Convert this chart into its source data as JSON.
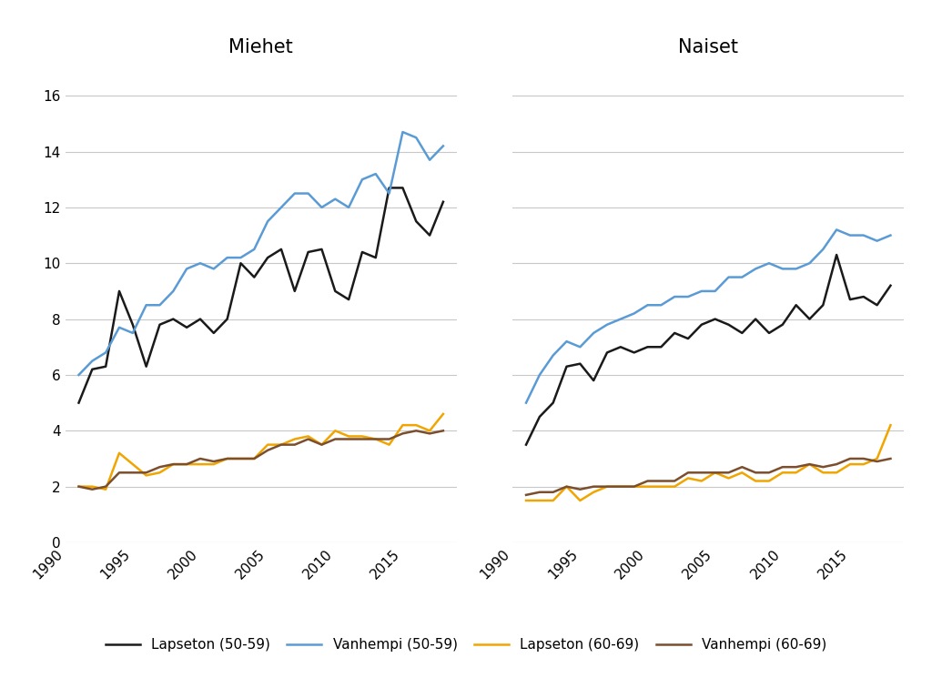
{
  "years": [
    1991,
    1992,
    1993,
    1994,
    1995,
    1996,
    1997,
    1998,
    1999,
    2000,
    2001,
    2002,
    2003,
    2004,
    2005,
    2006,
    2007,
    2008,
    2009,
    2010,
    2011,
    2012,
    2013,
    2014,
    2015,
    2016,
    2017,
    2018
  ],
  "men": {
    "lapseton_5059": [
      5.0,
      6.2,
      6.3,
      9.0,
      7.8,
      6.3,
      7.8,
      8.0,
      7.7,
      8.0,
      7.5,
      8.0,
      10.0,
      9.5,
      10.2,
      10.5,
      9.0,
      10.4,
      10.5,
      9.0,
      8.7,
      10.4,
      10.2,
      12.7,
      12.7,
      11.5,
      11.0,
      12.2
    ],
    "vanhempi_5059": [
      6.0,
      6.5,
      6.8,
      7.7,
      7.5,
      8.5,
      8.5,
      9.0,
      9.8,
      10.0,
      9.8,
      10.2,
      10.2,
      10.5,
      11.5,
      12.0,
      12.5,
      12.5,
      12.0,
      12.3,
      12.0,
      13.0,
      13.2,
      12.5,
      14.7,
      14.5,
      13.7,
      14.2
    ],
    "lapseton_6069": [
      2.0,
      2.0,
      1.9,
      3.2,
      2.8,
      2.4,
      2.5,
      2.8,
      2.8,
      2.8,
      2.8,
      3.0,
      3.0,
      3.0,
      3.5,
      3.5,
      3.7,
      3.8,
      3.5,
      4.0,
      3.8,
      3.8,
      3.7,
      3.5,
      4.2,
      4.2,
      4.0,
      4.6
    ],
    "vanhempi_6069": [
      2.0,
      1.9,
      2.0,
      2.5,
      2.5,
      2.5,
      2.7,
      2.8,
      2.8,
      3.0,
      2.9,
      3.0,
      3.0,
      3.0,
      3.3,
      3.5,
      3.5,
      3.7,
      3.5,
      3.7,
      3.7,
      3.7,
      3.7,
      3.7,
      3.9,
      4.0,
      3.9,
      4.0
    ]
  },
  "women": {
    "lapseton_5059": [
      3.5,
      4.5,
      5.0,
      6.3,
      6.4,
      5.8,
      6.8,
      7.0,
      6.8,
      7.0,
      7.0,
      7.5,
      7.3,
      7.8,
      8.0,
      7.8,
      7.5,
      8.0,
      7.5,
      7.8,
      8.5,
      8.0,
      8.5,
      10.3,
      8.7,
      8.8,
      8.5,
      9.2
    ],
    "vanhempi_5059": [
      5.0,
      6.0,
      6.7,
      7.2,
      7.0,
      7.5,
      7.8,
      8.0,
      8.2,
      8.5,
      8.5,
      8.8,
      8.8,
      9.0,
      9.0,
      9.5,
      9.5,
      9.8,
      10.0,
      9.8,
      9.8,
      10.0,
      10.5,
      11.2,
      11.0,
      11.0,
      10.8,
      11.0
    ],
    "lapseton_6069": [
      1.5,
      1.5,
      1.5,
      2.0,
      1.5,
      1.8,
      2.0,
      2.0,
      2.0,
      2.0,
      2.0,
      2.0,
      2.3,
      2.2,
      2.5,
      2.3,
      2.5,
      2.2,
      2.2,
      2.5,
      2.5,
      2.8,
      2.5,
      2.5,
      2.8,
      2.8,
      3.0,
      4.2
    ],
    "vanhempi_6069": [
      1.7,
      1.8,
      1.8,
      2.0,
      1.9,
      2.0,
      2.0,
      2.0,
      2.0,
      2.2,
      2.2,
      2.2,
      2.5,
      2.5,
      2.5,
      2.5,
      2.7,
      2.5,
      2.5,
      2.7,
      2.7,
      2.8,
      2.7,
      2.8,
      3.0,
      3.0,
      2.9,
      3.0
    ]
  },
  "titles": [
    "Miehet",
    "Naiset"
  ],
  "legend_labels": [
    "Lapseton (50-59)",
    "Vanhempi (50-59)",
    "Lapseton (60-69)",
    "Vanhempi (60-69)"
  ],
  "colors": {
    "lapseton_5059": "#1a1a1a",
    "vanhempi_5059": "#5b9bd5",
    "lapseton_6069": "#f0a500",
    "vanhempi_6069": "#7b4f2e"
  },
  "ylim": [
    0,
    17
  ],
  "yticks": [
    0,
    2,
    4,
    6,
    8,
    10,
    12,
    14,
    16
  ],
  "xlim": [
    1990,
    2019
  ],
  "xticks": [
    1990,
    1995,
    2000,
    2005,
    2010,
    2015
  ],
  "background_color": "#ffffff",
  "linewidth": 1.8,
  "title_fontsize": 15,
  "tick_fontsize": 11,
  "legend_fontsize": 11
}
